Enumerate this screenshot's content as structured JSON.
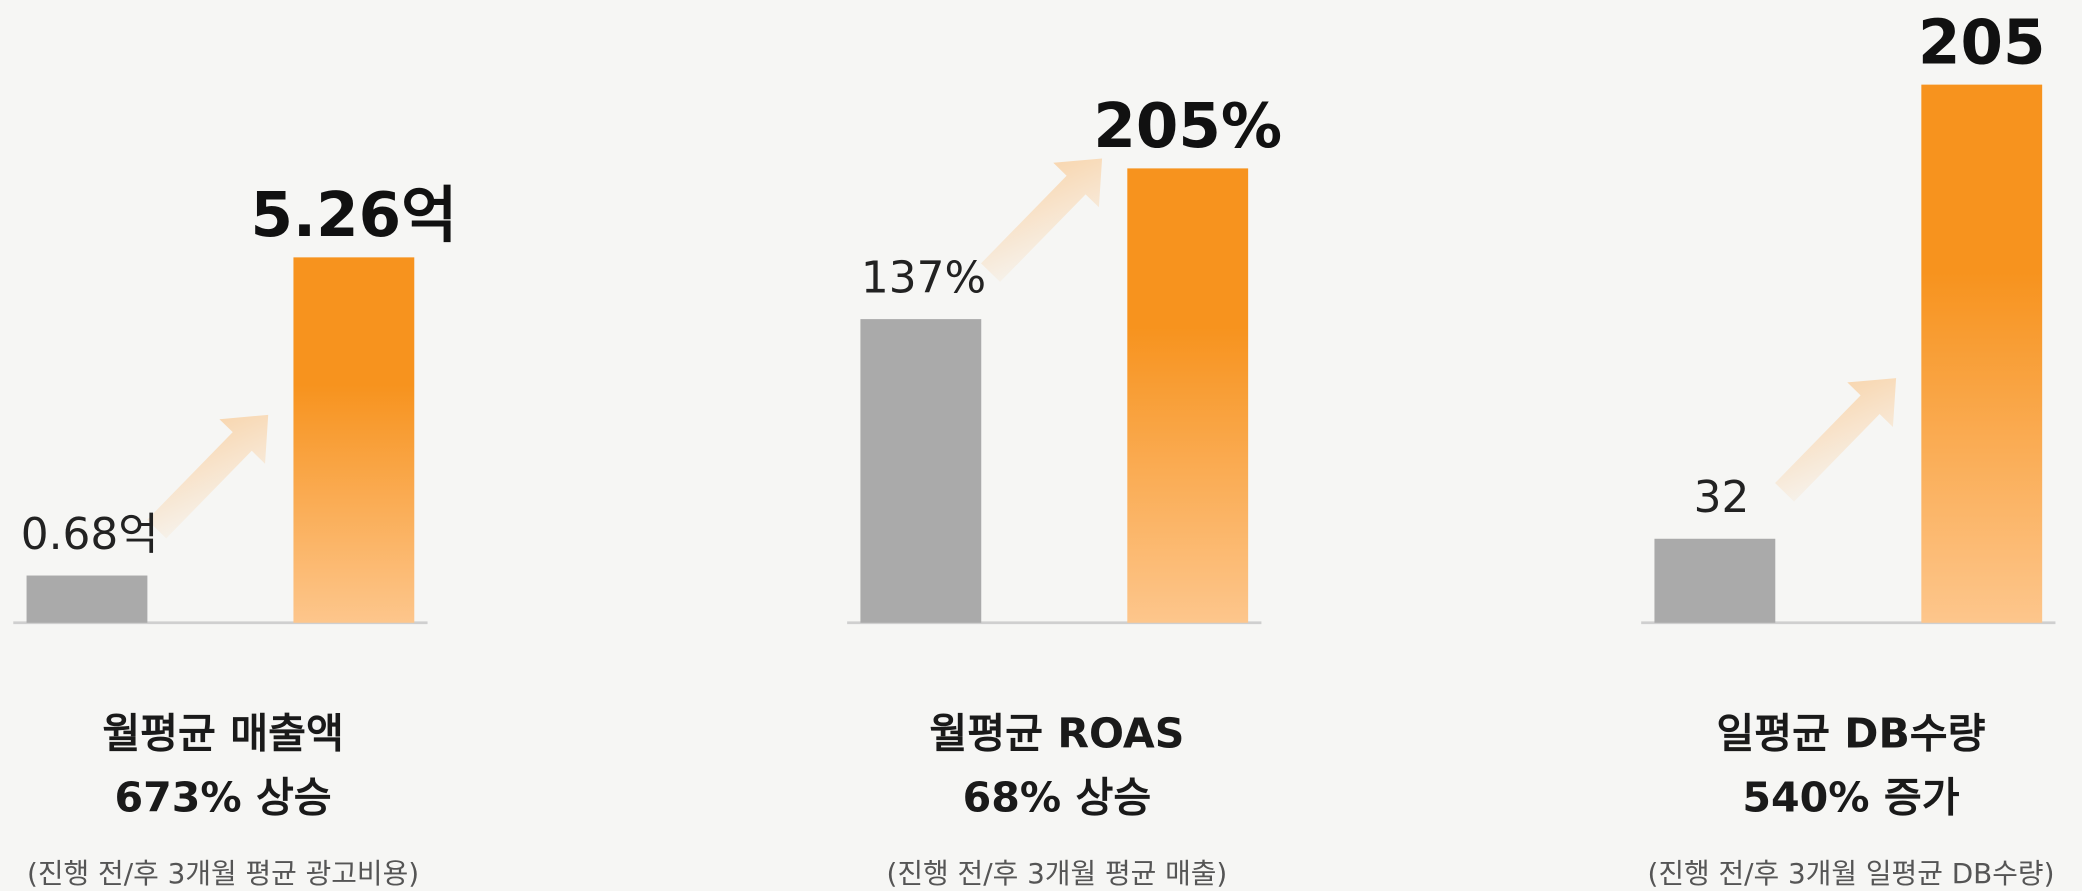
{
  "chart_data": [
    {
      "type": "bar",
      "title": [
        "월평균 매출액",
        "673% 상승"
      ],
      "subtitle": "(진행 전/후 3개월 평균 광고비용)",
      "values": [
        0.68,
        5.26
      ],
      "value_labels": [
        "0.68억",
        "5.26억"
      ],
      "colors": [
        "#aaaaaa",
        "#f7931e"
      ],
      "ylim": [
        0,
        8.2
      ]
    },
    {
      "type": "bar",
      "title": [
        "월평균 ROAS",
        "68% 상승"
      ],
      "subtitle": "(진행 전/후 3개월 평균 매출)",
      "values": [
        137,
        205
      ],
      "value_labels": [
        "137%",
        "205%"
      ],
      "colors": [
        "#aaaaaa",
        "#f7931e"
      ],
      "ylim": [
        0,
        257
      ]
    },
    {
      "type": "bar",
      "title": [
        "일평균 DB수량",
        "540% 증가"
      ],
      "subtitle": "(진행 전/후 3개월 일평균 DB수량)",
      "values": [
        32,
        205
      ],
      "colors": [
        "#aaaaaa",
        "#f7931e"
      ],
      "ylim": [
        0,
        217
      ]
    }
  ]
}
